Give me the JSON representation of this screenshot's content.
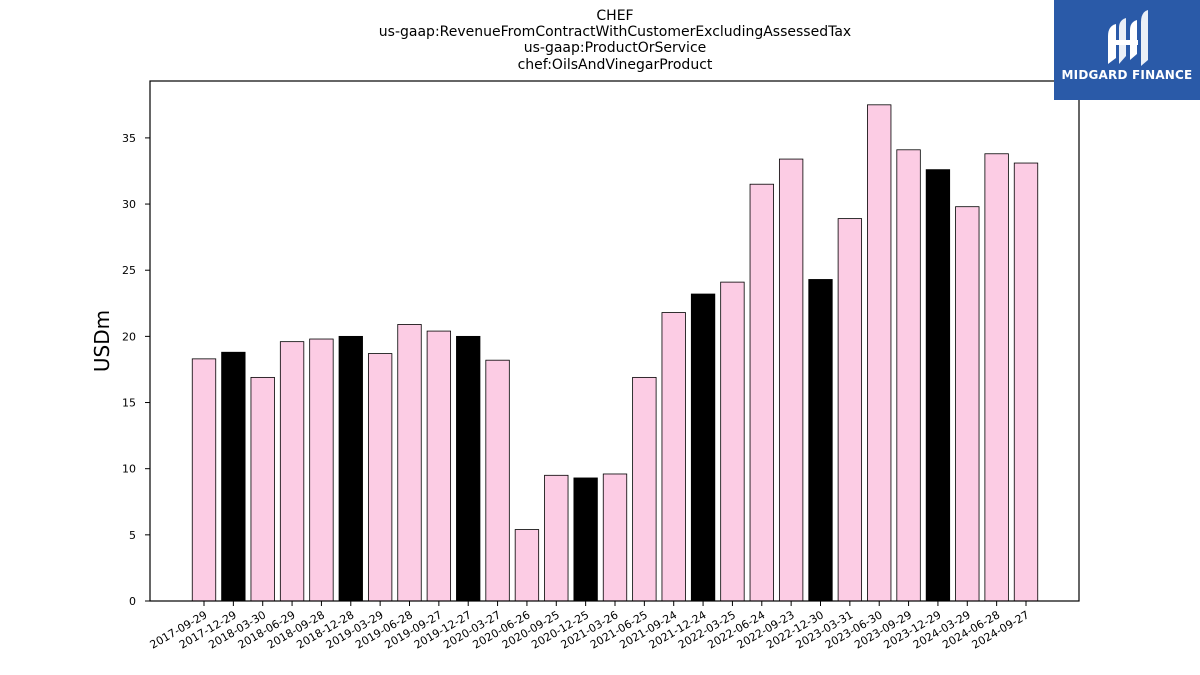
{
  "title_lines": [
    "CHEF",
    "us-gaap:RevenueFromContractWithCustomerExcludingAssessedTax",
    "us-gaap:ProductOrService",
    "chef:OilsAndVinegarProduct"
  ],
  "logo": {
    "text": "MIDGARD FINANCE",
    "color": "#2a5aa8"
  },
  "colors": {
    "pink": "#fccce4",
    "black": "#000000"
  },
  "chart_data": {
    "type": "bar",
    "title": "CHEF us-gaap:RevenueFromContractWithCustomerExcludingAssessedTax us-gaap:ProductOrService chef:OilsAndVinegarProduct",
    "xlabel": "",
    "ylabel": "USDm",
    "ylim": [
      0,
      39.3
    ],
    "yticks": [
      0,
      5,
      10,
      15,
      20,
      25,
      30,
      35
    ],
    "grid": false,
    "categories": [
      "2017-09-29",
      "2017-12-29",
      "2018-03-30",
      "2018-06-29",
      "2018-09-28",
      "2018-12-28",
      "2019-03-29",
      "2019-06-28",
      "2019-09-27",
      "2019-12-27",
      "2020-03-27",
      "2020-06-26",
      "2020-09-25",
      "2020-12-25",
      "2021-03-26",
      "2021-06-25",
      "2021-09-24",
      "2021-12-24",
      "2022-03-25",
      "2022-06-24",
      "2022-09-23",
      "2022-12-30",
      "2023-03-31",
      "2023-06-30",
      "2023-09-29",
      "2023-12-29",
      "2024-03-29",
      "2024-06-28",
      "2024-09-27"
    ],
    "values": [
      18.3,
      18.8,
      16.9,
      19.6,
      19.8,
      20.0,
      18.7,
      20.9,
      20.4,
      20.0,
      18.2,
      5.4,
      9.5,
      9.3,
      9.6,
      16.9,
      21.8,
      23.2,
      24.1,
      31.5,
      33.4,
      24.3,
      28.9,
      37.5,
      34.1,
      32.6,
      29.8,
      33.8,
      33.1
    ],
    "bar_colors": [
      "pink",
      "black",
      "pink",
      "pink",
      "pink",
      "black",
      "pink",
      "pink",
      "pink",
      "black",
      "pink",
      "pink",
      "pink",
      "black",
      "pink",
      "pink",
      "pink",
      "black",
      "pink",
      "pink",
      "pink",
      "black",
      "pink",
      "pink",
      "pink",
      "black",
      "pink",
      "pink",
      "pink"
    ]
  }
}
